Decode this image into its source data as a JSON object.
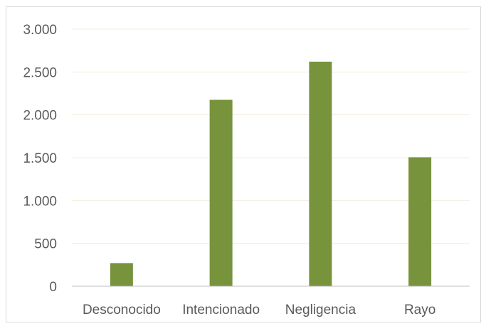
{
  "chart_data": {
    "type": "bar",
    "categories": [
      "Desconocido",
      "Intencionado",
      "Negligencia",
      "Rayo"
    ],
    "values": [
      270,
      2175,
      2620,
      1505
    ],
    "ylim": [
      0,
      3000
    ],
    "yticks": [
      0,
      500,
      1000,
      1500,
      2000,
      2500,
      3000
    ],
    "ytick_labels": [
      "0",
      "500",
      "1.000",
      "1.500",
      "2.000",
      "2.500",
      "3.000"
    ],
    "grid": true,
    "legend": "none",
    "colors": {
      "bar": "#77933c",
      "gridline": "#f2eedc",
      "axis": "#bfbfbf",
      "tick_text": "#595959",
      "border": "#d9d9d9"
    }
  }
}
